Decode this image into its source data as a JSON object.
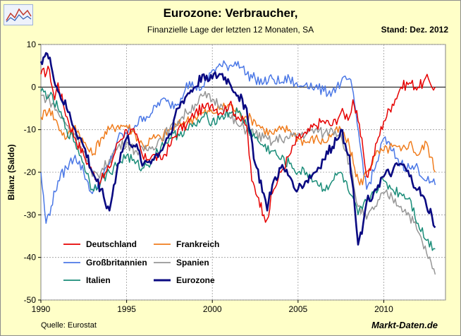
{
  "header": {
    "title": "Eurozone: Verbraucher,",
    "subtitle": "Finanzielle Lage der letzten 12 Monaten, SA",
    "stand": "Stand: Dez. 2012"
  },
  "footer": {
    "source": "Quelle: Eurostat",
    "brand": "Markt-Daten.de"
  },
  "chart_data": {
    "type": "line",
    "title": "Eurozone: Verbraucher,",
    "subtitle": "Finanzielle Lage der letzten 12 Monaten, SA",
    "xlabel": "",
    "ylabel": "Bilanz (Saldo)",
    "xlim": [
      1990,
      2013.6
    ],
    "ylim": [
      -50,
      10
    ],
    "x_ticks": [
      "1990",
      "1995",
      "2000",
      "2005",
      "2010"
    ],
    "y_ticks": [
      "10",
      "0",
      "-10",
      "-20",
      "-30",
      "-40",
      "-50"
    ],
    "grid": true,
    "legend_position": "bottom-left",
    "series": [
      {
        "name": "Deutschland",
        "color": "#e60000",
        "width": 1.5,
        "points": [
          [
            1990,
            3
          ],
          [
            1990.5,
            4
          ],
          [
            1990.8,
            -3
          ],
          [
            1991.0,
            1
          ],
          [
            1991.3,
            -4
          ],
          [
            1991.6,
            -8
          ],
          [
            1992.0,
            -12
          ],
          [
            1992.5,
            -16
          ],
          [
            1993.0,
            -20
          ],
          [
            1993.5,
            -22
          ],
          [
            1994.0,
            -19
          ],
          [
            1994.5,
            -13
          ],
          [
            1995.0,
            -10
          ],
          [
            1995.5,
            -11
          ],
          [
            1996.0,
            -17
          ],
          [
            1996.5,
            -16
          ],
          [
            1997.0,
            -17
          ],
          [
            1997.5,
            -14
          ],
          [
            1998.0,
            -10
          ],
          [
            1998.5,
            -9
          ],
          [
            1999.0,
            -6
          ],
          [
            1999.5,
            -5
          ],
          [
            2000.0,
            -4
          ],
          [
            2000.5,
            -6
          ],
          [
            2001.0,
            -4
          ],
          [
            2001.5,
            -7
          ],
          [
            2002.0,
            -9
          ],
          [
            2002.3,
            -22
          ],
          [
            2002.7,
            -26
          ],
          [
            2003.0,
            -30
          ],
          [
            2003.2,
            -31
          ],
          [
            2003.5,
            -25
          ],
          [
            2004.0,
            -20
          ],
          [
            2004.5,
            -16
          ],
          [
            2005.0,
            -12
          ],
          [
            2005.5,
            -11
          ],
          [
            2006.0,
            -9
          ],
          [
            2006.5,
            -8
          ],
          [
            2007.0,
            -9
          ],
          [
            2007.5,
            -6
          ],
          [
            2008.0,
            -7
          ],
          [
            2008.2,
            -3
          ],
          [
            2008.5,
            -8
          ],
          [
            2008.8,
            -15
          ],
          [
            2009.0,
            -21
          ],
          [
            2009.3,
            -18
          ],
          [
            2009.6,
            -13
          ],
          [
            2010.0,
            -8
          ],
          [
            2010.5,
            -4
          ],
          [
            2011.0,
            0
          ],
          [
            2011.5,
            1
          ],
          [
            2012.0,
            0
          ],
          [
            2012.3,
            1
          ],
          [
            2012.6,
            2
          ],
          [
            2012.8,
            0
          ],
          [
            2013.0,
            0
          ]
        ]
      },
      {
        "name": "Frankreich",
        "color": "#f07d1e",
        "width": 1.5,
        "points": [
          [
            1990,
            -7
          ],
          [
            1990.5,
            -5
          ],
          [
            1991.0,
            -9
          ],
          [
            1991.5,
            -12
          ],
          [
            1992.0,
            -9
          ],
          [
            1992.5,
            -13
          ],
          [
            1993.0,
            -16
          ],
          [
            1993.5,
            -12
          ],
          [
            1994.0,
            -10
          ],
          [
            1994.5,
            -9
          ],
          [
            1995.0,
            -9
          ],
          [
            1995.5,
            -11
          ],
          [
            1996.0,
            -14
          ],
          [
            1996.5,
            -12
          ],
          [
            1997.0,
            -12
          ],
          [
            1997.5,
            -10
          ],
          [
            1998.0,
            -9
          ],
          [
            1998.5,
            -8
          ],
          [
            1999.0,
            -7
          ],
          [
            1999.5,
            -6
          ],
          [
            2000.0,
            -6
          ],
          [
            2000.5,
            -5
          ],
          [
            2001.0,
            -4
          ],
          [
            2001.5,
            -6
          ],
          [
            2002.0,
            -7
          ],
          [
            2002.5,
            -8
          ],
          [
            2003.0,
            -10
          ],
          [
            2003.5,
            -11
          ],
          [
            2004.0,
            -10
          ],
          [
            2004.5,
            -10
          ],
          [
            2005.0,
            -12
          ],
          [
            2005.5,
            -13
          ],
          [
            2006.0,
            -12
          ],
          [
            2006.5,
            -13
          ],
          [
            2007.0,
            -11
          ],
          [
            2007.5,
            -10
          ],
          [
            2008.0,
            -14
          ],
          [
            2008.3,
            -19
          ],
          [
            2008.6,
            -23
          ],
          [
            2009.0,
            -20
          ],
          [
            2009.5,
            -16
          ],
          [
            2010.0,
            -15
          ],
          [
            2010.5,
            -14
          ],
          [
            2011.0,
            -15
          ],
          [
            2011.5,
            -13
          ],
          [
            2012.0,
            -16
          ],
          [
            2012.5,
            -13
          ],
          [
            2013.0,
            -20
          ]
        ]
      },
      {
        "name": "Großbritannien",
        "color": "#4b78e6",
        "width": 1.5,
        "points": [
          [
            1990,
            -20
          ],
          [
            1990.3,
            -32
          ],
          [
            1990.6,
            -28
          ],
          [
            1991.0,
            -22
          ],
          [
            1991.5,
            -19
          ],
          [
            1992.0,
            -16
          ],
          [
            1992.5,
            -20
          ],
          [
            1993.0,
            -25
          ],
          [
            1993.5,
            -22
          ],
          [
            1994.0,
            -18
          ],
          [
            1994.5,
            -12
          ],
          [
            1995.0,
            -11
          ],
          [
            1995.5,
            -9
          ],
          [
            1996.0,
            -7
          ],
          [
            1996.5,
            -6
          ],
          [
            1997.0,
            -3
          ],
          [
            1997.5,
            -4
          ],
          [
            1998.0,
            -4
          ],
          [
            1998.5,
            1
          ],
          [
            1999.0,
            0
          ],
          [
            1999.5,
            0
          ],
          [
            2000.0,
            4
          ],
          [
            2000.5,
            5
          ],
          [
            2001.0,
            5
          ],
          [
            2001.5,
            6
          ],
          [
            2002.0,
            3
          ],
          [
            2002.5,
            2
          ],
          [
            2003.0,
            1
          ],
          [
            2003.5,
            2
          ],
          [
            2004.0,
            1
          ],
          [
            2004.5,
            2
          ],
          [
            2005.0,
            0
          ],
          [
            2005.5,
            1
          ],
          [
            2006.0,
            0
          ],
          [
            2006.5,
            -1
          ],
          [
            2007.0,
            -1
          ],
          [
            2007.5,
            1
          ],
          [
            2008.0,
            2
          ],
          [
            2008.3,
            -4
          ],
          [
            2008.6,
            -13
          ],
          [
            2009.0,
            -24
          ],
          [
            2009.5,
            -19
          ],
          [
            2010.0,
            -12
          ],
          [
            2010.5,
            -15
          ],
          [
            2011.0,
            -18
          ],
          [
            2011.5,
            -19
          ],
          [
            2012.0,
            -19
          ],
          [
            2012.5,
            -22
          ],
          [
            2013.0,
            -23
          ]
        ]
      },
      {
        "name": "Spanien",
        "color": "#969696",
        "width": 1.5,
        "points": [
          [
            1990,
            -2
          ],
          [
            1990.5,
            -3
          ],
          [
            1991.0,
            -6
          ],
          [
            1991.5,
            -9
          ],
          [
            1992.0,
            -11
          ],
          [
            1992.5,
            -15
          ],
          [
            1993.0,
            -21
          ],
          [
            1993.5,
            -20
          ],
          [
            1994.0,
            -17
          ],
          [
            1994.5,
            -14
          ],
          [
            1995.0,
            -13
          ],
          [
            1995.5,
            -15
          ],
          [
            1996.0,
            -15
          ],
          [
            1996.5,
            -14
          ],
          [
            1997.0,
            -12
          ],
          [
            1997.5,
            -10
          ],
          [
            1998.0,
            -8
          ],
          [
            1998.5,
            -6
          ],
          [
            1999.0,
            -4
          ],
          [
            1999.5,
            -2
          ],
          [
            2000.0,
            -3
          ],
          [
            2000.5,
            -4
          ],
          [
            2001.0,
            -7
          ],
          [
            2001.5,
            -9
          ],
          [
            2002.0,
            -10
          ],
          [
            2002.5,
            -11
          ],
          [
            2003.0,
            -12
          ],
          [
            2003.5,
            -13
          ],
          [
            2004.0,
            -12
          ],
          [
            2004.5,
            -12
          ],
          [
            2005.0,
            -11
          ],
          [
            2005.5,
            -11
          ],
          [
            2006.0,
            -10
          ],
          [
            2006.5,
            -11
          ],
          [
            2007.0,
            -10
          ],
          [
            2007.5,
            -11
          ],
          [
            2008.0,
            -18
          ],
          [
            2008.5,
            -28
          ],
          [
            2009.0,
            -31
          ],
          [
            2009.5,
            -28
          ],
          [
            2010.0,
            -25
          ],
          [
            2010.5,
            -26
          ],
          [
            2011.0,
            -28
          ],
          [
            2011.5,
            -30
          ],
          [
            2012.0,
            -34
          ],
          [
            2012.5,
            -39
          ],
          [
            2013.0,
            -44
          ]
        ]
      },
      {
        "name": "Italien",
        "color": "#198c78",
        "width": 1.5,
        "points": [
          [
            1990,
            -1
          ],
          [
            1990.5,
            -2
          ],
          [
            1991.0,
            -5
          ],
          [
            1991.5,
            -10
          ],
          [
            1992.0,
            -13
          ],
          [
            1992.5,
            -18
          ],
          [
            1993.0,
            -24
          ],
          [
            1993.5,
            -22
          ],
          [
            1994.0,
            -20
          ],
          [
            1994.5,
            -18
          ],
          [
            1995.0,
            -16
          ],
          [
            1995.5,
            -18
          ],
          [
            1996.0,
            -19
          ],
          [
            1996.5,
            -17
          ],
          [
            1997.0,
            -14
          ],
          [
            1997.5,
            -12
          ],
          [
            1998.0,
            -11
          ],
          [
            1998.5,
            -10
          ],
          [
            1999.0,
            -9
          ],
          [
            1999.5,
            -7
          ],
          [
            2000.0,
            -8
          ],
          [
            2000.5,
            -7
          ],
          [
            2001.0,
            -6
          ],
          [
            2001.5,
            -6
          ],
          [
            2002.0,
            -9
          ],
          [
            2002.5,
            -12
          ],
          [
            2003.0,
            -14
          ],
          [
            2003.5,
            -15
          ],
          [
            2004.0,
            -17
          ],
          [
            2004.5,
            -18
          ],
          [
            2005.0,
            -20
          ],
          [
            2005.5,
            -20
          ],
          [
            2006.0,
            -22
          ],
          [
            2006.5,
            -24
          ],
          [
            2007.0,
            -22
          ],
          [
            2007.5,
            -20
          ],
          [
            2008.0,
            -25
          ],
          [
            2008.5,
            -30
          ],
          [
            2009.0,
            -27
          ],
          [
            2009.5,
            -24
          ],
          [
            2010.0,
            -22
          ],
          [
            2010.5,
            -24
          ],
          [
            2011.0,
            -25
          ],
          [
            2011.5,
            -26
          ],
          [
            2012.0,
            -32
          ],
          [
            2012.5,
            -36
          ],
          [
            2013.0,
            -38
          ]
        ]
      },
      {
        "name": "Eurozone",
        "color": "#0a0a82",
        "width": 2.6,
        "points": [
          [
            1990,
            6
          ],
          [
            1990.3,
            8
          ],
          [
            1990.6,
            5
          ],
          [
            1991.0,
            -1
          ],
          [
            1991.5,
            -5
          ],
          [
            1992.0,
            -10
          ],
          [
            1992.5,
            -14
          ],
          [
            1993.0,
            -20
          ],
          [
            1993.5,
            -24
          ],
          [
            1994.0,
            -29
          ],
          [
            1994.5,
            -18
          ],
          [
            1995.0,
            -12
          ],
          [
            1995.5,
            -14
          ],
          [
            1996.0,
            -18
          ],
          [
            1996.5,
            -17
          ],
          [
            1997.0,
            -15
          ],
          [
            1997.5,
            -11
          ],
          [
            1998.0,
            -5
          ],
          [
            1998.5,
            -2
          ],
          [
            1999.0,
            0
          ],
          [
            1999.5,
            3
          ],
          [
            2000.0,
            2
          ],
          [
            2000.5,
            3
          ],
          [
            2001.0,
            1
          ],
          [
            2001.5,
            -2
          ],
          [
            2002.0,
            -5
          ],
          [
            2002.5,
            -18
          ],
          [
            2003.0,
            -25
          ],
          [
            2003.2,
            -29
          ],
          [
            2003.5,
            -23
          ],
          [
            2004.0,
            -19
          ],
          [
            2004.5,
            -21
          ],
          [
            2005.0,
            -24
          ],
          [
            2005.5,
            -22
          ],
          [
            2006.0,
            -20
          ],
          [
            2006.5,
            -17
          ],
          [
            2007.0,
            -14
          ],
          [
            2007.5,
            -10
          ],
          [
            2008.0,
            -16
          ],
          [
            2008.3,
            -28
          ],
          [
            2008.5,
            -37
          ],
          [
            2008.8,
            -32
          ],
          [
            2009.0,
            -27
          ],
          [
            2009.5,
            -24
          ],
          [
            2010.0,
            -21
          ],
          [
            2010.5,
            -20
          ],
          [
            2011.0,
            -18
          ],
          [
            2011.5,
            -21
          ],
          [
            2012.0,
            -24
          ],
          [
            2012.5,
            -28
          ],
          [
            2012.8,
            -30
          ],
          [
            2013.0,
            -33
          ]
        ]
      }
    ]
  }
}
